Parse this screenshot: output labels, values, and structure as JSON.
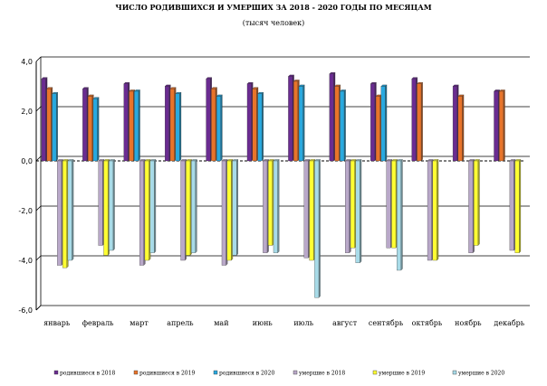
{
  "chart_data": {
    "type": "bar",
    "title": "ЧИСЛО РОДИВШИХСЯ И УМЕРШИХ ЗА 2018 - 2020 ГОДЫ ПО МЕСЯЦАМ",
    "subtitle": "(тысяч человек)",
    "categories": [
      "январь",
      "февраль",
      "март",
      "апрель",
      "май",
      "июнь",
      "июль",
      "август",
      "сентябрь",
      "октябрь",
      "ноябрь",
      "декабрь"
    ],
    "ylim": [
      -6,
      4
    ],
    "yticks": [
      "4,0",
      "2,0",
      "0,0",
      "-2,0",
      "-4,0",
      "-6,0"
    ],
    "ytick_values": [
      4,
      2,
      0,
      -2,
      -4,
      -6
    ],
    "grid": true,
    "legend_position": "bottom",
    "series": [
      {
        "name": "родившиеся в 2018",
        "color": "#6a2c91",
        "values": [
          3.3,
          2.9,
          3.1,
          3.0,
          3.3,
          3.1,
          3.4,
          3.5,
          3.1,
          3.3,
          3.0,
          2.8
        ]
      },
      {
        "name": "родившиеся в 2019",
        "color": "#e8742a",
        "values": [
          2.9,
          2.6,
          2.8,
          2.9,
          2.9,
          2.9,
          3.2,
          3.0,
          2.6,
          3.1,
          2.6,
          2.8
        ]
      },
      {
        "name": "родившиеся в 2020",
        "color": "#29a9df",
        "values": [
          2.7,
          2.5,
          2.8,
          2.7,
          2.6,
          2.7,
          3.0,
          2.8,
          3.0,
          null,
          null,
          null
        ]
      },
      {
        "name": "умершие в 2018",
        "color": "#b9a8c9",
        "values": [
          -4.2,
          -3.4,
          -4.2,
          -4.0,
          -4.2,
          -3.7,
          -3.9,
          -3.7,
          -3.5,
          -4.0,
          -3.7,
          -3.6
        ]
      },
      {
        "name": "умершие в 2019",
        "color": "#ffff33",
        "values": [
          -4.3,
          -3.8,
          -4.0,
          -3.8,
          -4.0,
          -3.4,
          -4.0,
          -3.5,
          -3.5,
          -4.0,
          -3.4,
          -3.7
        ]
      },
      {
        "name": "умершие в 2020",
        "color": "#a8dbe8",
        "values": [
          -4.0,
          -3.6,
          -3.7,
          -3.7,
          -3.8,
          -3.7,
          -5.5,
          -4.1,
          -4.4,
          null,
          null,
          null
        ]
      }
    ]
  }
}
